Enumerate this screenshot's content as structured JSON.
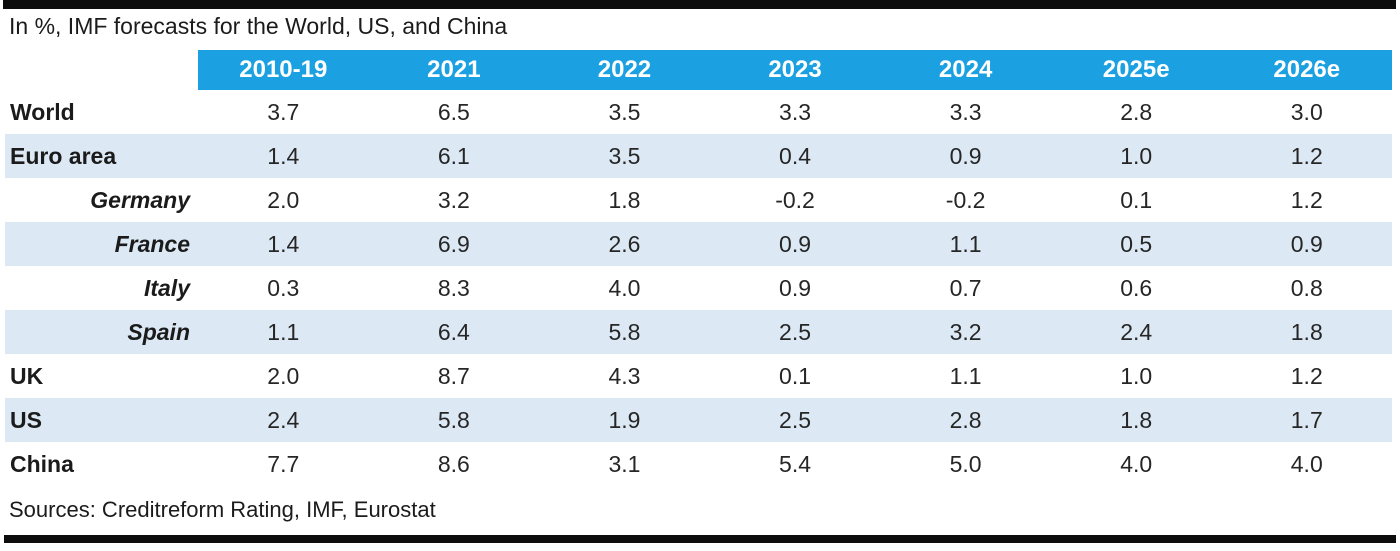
{
  "chart_data": {
    "type": "table",
    "title": "In %, IMF forecasts for the World, US, and China",
    "columns": [
      "2010-19",
      "2021",
      "2022",
      "2023",
      "2024",
      "2025e",
      "2026e"
    ],
    "rows": [
      {
        "label": "World",
        "style": "main",
        "values": [
          "3.7",
          "6.5",
          "3.5",
          "3.3",
          "3.3",
          "2.8",
          "3.0"
        ]
      },
      {
        "label": "Euro area",
        "style": "main",
        "values": [
          "1.4",
          "6.1",
          "3.5",
          "0.4",
          "0.9",
          "1.0",
          "1.2"
        ]
      },
      {
        "label": "Germany",
        "style": "sub",
        "values": [
          "2.0",
          "3.2",
          "1.8",
          "-0.2",
          "-0.2",
          "0.1",
          "1.2"
        ]
      },
      {
        "label": "France",
        "style": "sub",
        "values": [
          "1.4",
          "6.9",
          "2.6",
          "0.9",
          "1.1",
          "0.5",
          "0.9"
        ]
      },
      {
        "label": "Italy",
        "style": "sub",
        "values": [
          "0.3",
          "8.3",
          "4.0",
          "0.9",
          "0.7",
          "0.6",
          "0.8"
        ]
      },
      {
        "label": "Spain",
        "style": "sub",
        "values": [
          "1.1",
          "6.4",
          "5.8",
          "2.5",
          "3.2",
          "2.4",
          "1.8"
        ]
      },
      {
        "label": "UK",
        "style": "main",
        "values": [
          "2.0",
          "8.7",
          "4.3",
          "0.1",
          "1.1",
          "1.0",
          "1.2"
        ]
      },
      {
        "label": "US",
        "style": "main",
        "values": [
          "2.4",
          "5.8",
          "1.9",
          "2.5",
          "2.8",
          "1.8",
          "1.7"
        ]
      },
      {
        "label": "China",
        "style": "main",
        "values": [
          "7.7",
          "8.6",
          "3.1",
          "5.4",
          "5.0",
          "4.0",
          "4.0"
        ]
      }
    ],
    "source_note": "Sources: Creditreform Rating, IMF, Eurostat",
    "layout": {
      "legend": "none",
      "grid": "banded-rows",
      "banded_row_labels": [
        "Euro area",
        "France",
        "Spain",
        "US"
      ]
    }
  },
  "colors": {
    "header_blue": "#1ba1e2",
    "band_blue": "#dce9f4",
    "bar_black": "#0d0d0d"
  }
}
